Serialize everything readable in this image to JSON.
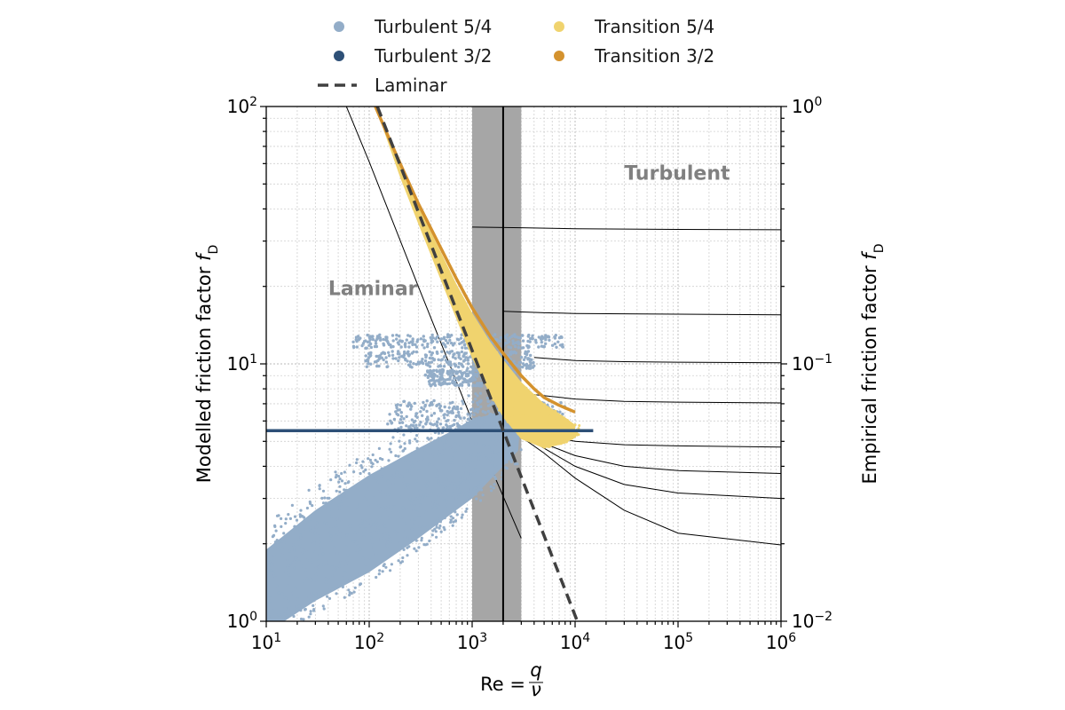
{
  "colors": {
    "turbulent_54": "#93adc8",
    "turbulent_32": "#2e5077",
    "transition_54": "#f0d36e",
    "transition_32": "#d4922e",
    "laminar": "#404040",
    "band": "#a6a6a6"
  },
  "chart_data": {
    "type": "scatter",
    "x_scale": "log",
    "y_scale": "log",
    "y2_scale": "log",
    "xlim": [
      10,
      1000000
    ],
    "ylim": [
      1,
      100
    ],
    "y2lim": [
      0.01,
      1
    ],
    "grid": true,
    "legend_position": "top",
    "xlabel": {
      "prefix": "Re = ",
      "numerator": "q",
      "denominator": "ν"
    },
    "ylabel": {
      "text": "Modelled friction factor ",
      "symbol": "f",
      "subscript": "D"
    },
    "y2label": {
      "text": "Empirical friction factor ",
      "symbol": "f",
      "subscript": "D"
    },
    "x_ticks": [
      {
        "value": 10,
        "base": "10",
        "exp": "1"
      },
      {
        "value": 100,
        "base": "10",
        "exp": "2"
      },
      {
        "value": 1000,
        "base": "10",
        "exp": "3"
      },
      {
        "value": 10000,
        "base": "10",
        "exp": "4"
      },
      {
        "value": 100000,
        "base": "10",
        "exp": "5"
      },
      {
        "value": 1000000,
        "base": "10",
        "exp": "6"
      }
    ],
    "y_ticks": [
      {
        "value": 1,
        "base": "10",
        "exp": "0"
      },
      {
        "value": 10,
        "base": "10",
        "exp": "1"
      },
      {
        "value": 100,
        "base": "10",
        "exp": "2"
      }
    ],
    "y2_ticks": [
      {
        "value": 0.01,
        "base": "10",
        "exp": "−2"
      },
      {
        "value": 0.1,
        "base": "10",
        "exp": "−1"
      },
      {
        "value": 1,
        "base": "10",
        "exp": "0"
      }
    ],
    "annotations": [
      {
        "text": "Laminar",
        "x": 40,
        "y": 18.5
      },
      {
        "text": "Turbulent",
        "x": 30000,
        "y": 52
      }
    ],
    "transition_band": {
      "x_min": 1000,
      "x_max": 3000,
      "critical_re": 2000
    },
    "legend": [
      {
        "label": "Turbulent 5/4",
        "color": "#93adc8",
        "kind": "marker"
      },
      {
        "label": "Transition 5/4",
        "color": "#f0d36e",
        "kind": "marker"
      },
      {
        "label": "Turbulent 3/2",
        "color": "#2e5077",
        "kind": "marker"
      },
      {
        "label": "Transition 3/2",
        "color": "#d4922e",
        "kind": "marker"
      },
      {
        "label": "Laminar",
        "color": "#404040",
        "kind": "dashed"
      }
    ],
    "series": [
      {
        "name": "Laminar",
        "style": "dashed",
        "color": "#404040",
        "x": [
          120,
          10500
        ],
        "y": [
          100,
          1.0
        ]
      },
      {
        "name": "Turbulent 3/2",
        "style": "line",
        "color": "#2e5077",
        "x": [
          10,
          15000
        ],
        "y": [
          5.5,
          5.5
        ]
      },
      {
        "name": "Transition 3/2",
        "style": "line",
        "color": "#d4922e",
        "x": [
          115,
          150,
          200,
          300,
          500,
          700,
          1000,
          1500,
          2000,
          3000,
          4000,
          5000,
          7000,
          10000
        ],
        "y": [
          100,
          78,
          60,
          42,
          28,
          21.5,
          16.5,
          12.8,
          11.0,
          9.0,
          8.0,
          7.4,
          6.9,
          6.5
        ]
      },
      {
        "name": "Transition 5/4",
        "style": "band",
        "color": "#f0d36e",
        "x": [
          115,
          200,
          300,
          500,
          700,
          1000,
          1500,
          2000,
          3000,
          5000,
          8000,
          10000
        ],
        "y_upper": [
          100,
          59,
          41,
          27,
          20.5,
          15.8,
          12.2,
          10.4,
          8.5,
          7.0,
          6.2,
          5.8
        ],
        "y_lower": [
          100,
          53,
          35,
          21,
          15,
          10.5,
          7.6,
          6.2,
          5.1,
          4.7,
          4.9,
          5.2
        ]
      },
      {
        "name": "Turbulent 5/4",
        "style": "scatter",
        "color": "#93adc8",
        "clusters": [
          {
            "x_range": [
              70,
              8000
            ],
            "y_range": [
              11.5,
              13
            ]
          },
          {
            "x_range": [
              90,
              4000
            ],
            "y_range": [
              9.6,
              11.2
            ]
          },
          {
            "x_range": [
              350,
              2800
            ],
            "y_range": [
              8.2,
              9.5
            ]
          },
          {
            "x_range": [
              150,
              8000
            ],
            "y_range": [
              5.4,
              7.2
            ]
          }
        ],
        "cone_lower": {
          "x": [
            10,
            15,
            30,
            100,
            300,
            1000,
            2800
          ],
          "y": [
            1.0,
            1.0,
            1.2,
            1.55,
            2.1,
            3.0,
            4.6
          ]
        },
        "cone_upper": {
          "x": [
            10,
            30,
            100,
            300,
            700,
            1000,
            3000
          ],
          "y": [
            1.9,
            2.7,
            3.7,
            4.7,
            5.6,
            6.1,
            6.8
          ]
        }
      }
    ],
    "empirical_curves": [
      {
        "x": [
          1000,
          3000,
          10000,
          100000,
          1000000
        ],
        "y": [
          34,
          33.8,
          33.5,
          33.3,
          33.2
        ]
      },
      {
        "x": [
          2000,
          5000,
          10000,
          100000,
          1000000
        ],
        "y": [
          16,
          15.8,
          15.7,
          15.6,
          15.5
        ]
      },
      {
        "x": [
          4000,
          10000,
          30000,
          100000,
          1000000
        ],
        "y": [
          10.6,
          10.3,
          10.2,
          10.15,
          10.1
        ]
      },
      {
        "x": [
          4000,
          10000,
          30000,
          100000,
          1000000
        ],
        "y": [
          7.6,
          7.3,
          7.15,
          7.1,
          7.05
        ]
      },
      {
        "x": [
          3500,
          5000,
          10000,
          30000,
          100000,
          1000000
        ],
        "y": [
          5.6,
          5.3,
          5.0,
          4.85,
          4.8,
          4.75
        ]
      },
      {
        "x": [
          3000,
          5000,
          10000,
          30000,
          100000,
          1000000
        ],
        "y": [
          5.4,
          4.9,
          4.4,
          4.0,
          3.85,
          3.75
        ]
      },
      {
        "x": [
          3000,
          5000,
          10000,
          30000,
          100000,
          1000000
        ],
        "y": [
          5.3,
          4.7,
          4.0,
          3.4,
          3.15,
          3.0
        ]
      },
      {
        "x": [
          3000,
          5000,
          10000,
          30000,
          100000,
          1000000
        ],
        "y": [
          5.2,
          4.5,
          3.6,
          2.7,
          2.2,
          1.98
        ]
      },
      {
        "x": [
          60,
          100,
          300,
          800,
          1500,
          3000
        ],
        "y": [
          100,
          61,
          20,
          7.5,
          4.0,
          2.1
        ]
      }
    ]
  }
}
